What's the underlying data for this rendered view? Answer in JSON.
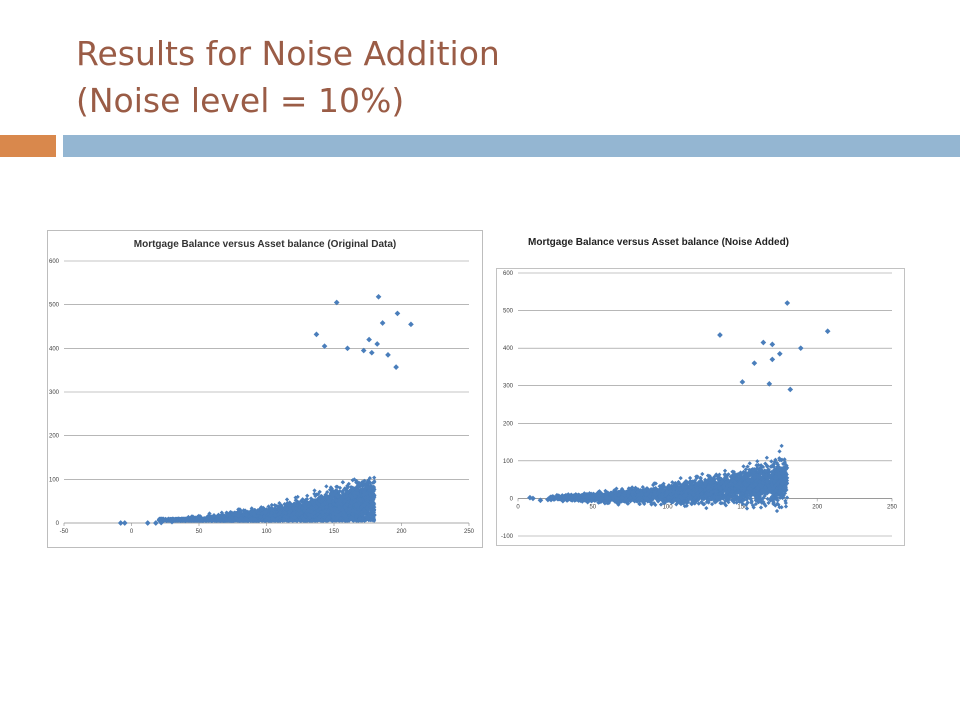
{
  "slide": {
    "title_line1": "Results for Noise Addition",
    "title_line2": "(Noise level = 10%)",
    "title_color": "#9a5c46",
    "accent_color": "#d9884c",
    "bar_color": "#94b6d2"
  },
  "chart_data": [
    {
      "type": "scatter",
      "title": "Mortgage Balance versus Asset balance (Original Data)",
      "xlabel": "",
      "ylabel": "",
      "xlim": [
        -50,
        250
      ],
      "ylim": [
        0,
        600
      ],
      "x_ticks": [
        -50,
        0,
        50,
        100,
        150,
        200,
        250
      ],
      "y_ticks": [
        0,
        100,
        200,
        300,
        400,
        500,
        600
      ],
      "grid": true,
      "marker_color": "#4a7ebb",
      "cloud_seed": 11,
      "cloud_noise": 14,
      "cloud_count": 5200,
      "points": [
        {
          "x": -8,
          "y": 0
        },
        {
          "x": -5,
          "y": 0
        },
        {
          "x": 12,
          "y": 0
        },
        {
          "x": 18,
          "y": 0
        },
        {
          "x": 22,
          "y": 1
        },
        {
          "x": 30,
          "y": 3
        },
        {
          "x": 40,
          "y": 6
        },
        {
          "x": 45,
          "y": 8
        },
        {
          "x": 183,
          "y": 518
        },
        {
          "x": 152,
          "y": 505
        },
        {
          "x": 197,
          "y": 480
        },
        {
          "x": 207,
          "y": 455
        },
        {
          "x": 186,
          "y": 458
        },
        {
          "x": 176,
          "y": 420
        },
        {
          "x": 182,
          "y": 410
        },
        {
          "x": 137,
          "y": 432
        },
        {
          "x": 196,
          "y": 357
        },
        {
          "x": 172,
          "y": 395
        },
        {
          "x": 160,
          "y": 400
        },
        {
          "x": 143,
          "y": 405
        },
        {
          "x": 178,
          "y": 390
        },
        {
          "x": 190,
          "y": 385
        }
      ]
    },
    {
      "type": "scatter",
      "title": "Mortgage Balance versus Asset balance (Noise Added)",
      "xlabel": "",
      "ylabel": "",
      "xlim": [
        0,
        250
      ],
      "ylim": [
        -100,
        600
      ],
      "x_ticks": [
        0,
        50,
        100,
        150,
        200,
        250
      ],
      "y_ticks": [
        -100,
        0,
        100,
        200,
        300,
        400,
        500,
        600
      ],
      "grid": true,
      "marker_color": "#4a7ebb",
      "cloud_seed": 29,
      "cloud_noise": 16,
      "cloud_count": 3600,
      "points": [
        {
          "x": 8,
          "y": 2
        },
        {
          "x": 10,
          "y": 0
        },
        {
          "x": 15,
          "y": -5
        },
        {
          "x": 20,
          "y": -3
        },
        {
          "x": 26,
          "y": 2
        },
        {
          "x": 30,
          "y": -6
        },
        {
          "x": 180,
          "y": 520
        },
        {
          "x": 207,
          "y": 445
        },
        {
          "x": 135,
          "y": 435
        },
        {
          "x": 164,
          "y": 415
        },
        {
          "x": 170,
          "y": 410
        },
        {
          "x": 189,
          "y": 400
        },
        {
          "x": 168,
          "y": 305
        },
        {
          "x": 182,
          "y": 290
        },
        {
          "x": 150,
          "y": 310
        },
        {
          "x": 170,
          "y": 370
        },
        {
          "x": 158,
          "y": 360
        },
        {
          "x": 175,
          "y": 385
        }
      ]
    }
  ]
}
